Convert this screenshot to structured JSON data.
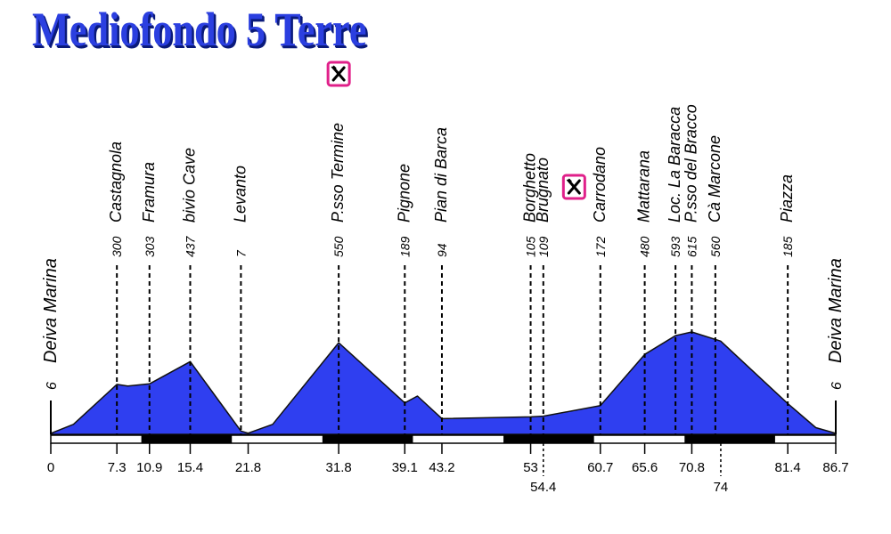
{
  "chart_data": {
    "type": "area",
    "title": "Mediofondo 5 Terre",
    "xlim": [
      0,
      86.7
    ],
    "ylim": [
      0,
      650
    ],
    "color": "#2f3ff0",
    "profile": [
      {
        "x": 0,
        "y": 6
      },
      {
        "x": 2.5,
        "y": 60
      },
      {
        "x": 7.3,
        "y": 300
      },
      {
        "x": 8.5,
        "y": 290
      },
      {
        "x": 10.9,
        "y": 303
      },
      {
        "x": 15.4,
        "y": 437
      },
      {
        "x": 21.0,
        "y": 20
      },
      {
        "x": 21.8,
        "y": 7
      },
      {
        "x": 24.5,
        "y": 60
      },
      {
        "x": 31.8,
        "y": 550
      },
      {
        "x": 39.1,
        "y": 189
      },
      {
        "x": 40.5,
        "y": 230
      },
      {
        "x": 43.2,
        "y": 94
      },
      {
        "x": 53,
        "y": 105
      },
      {
        "x": 54.4,
        "y": 109
      },
      {
        "x": 60.7,
        "y": 172
      },
      {
        "x": 65.6,
        "y": 480
      },
      {
        "x": 69.0,
        "y": 593
      },
      {
        "x": 70.8,
        "y": 615
      },
      {
        "x": 74,
        "y": 560
      },
      {
        "x": 81.4,
        "y": 185
      },
      {
        "x": 84.5,
        "y": 40
      },
      {
        "x": 86.7,
        "y": 6
      }
    ],
    "waypoints": [
      {
        "x": 7.3,
        "alt": "300",
        "name": "Castagnola"
      },
      {
        "x": 10.9,
        "alt": "303",
        "name": "Framura"
      },
      {
        "x": 15.4,
        "alt": "437",
        "name": "bivio Cave"
      },
      {
        "x": 21.0,
        "alt": "7",
        "name": "Levanto"
      },
      {
        "x": 31.8,
        "alt": "550",
        "name": "P.sso Termine"
      },
      {
        "x": 39.1,
        "alt": "189",
        "name": "Pignone"
      },
      {
        "x": 43.2,
        "alt": "94",
        "name": "Pian di Barca"
      },
      {
        "x": 53,
        "alt": "105",
        "name": "Borghetto"
      },
      {
        "x": 54.4,
        "alt": "109",
        "name": "Brugnato"
      },
      {
        "x": 60.7,
        "alt": "172",
        "name": "Carrodano"
      },
      {
        "x": 65.6,
        "alt": "480",
        "name": "Mattarana"
      },
      {
        "x": 69.0,
        "alt": "593",
        "name": "Loc. La Baracca"
      },
      {
        "x": 70.8,
        "alt": "615",
        "name": "P.sso del Bracco"
      },
      {
        "x": 73.4,
        "alt": "560",
        "name": "Cà Marcone"
      },
      {
        "x": 81.4,
        "alt": "185",
        "name": "Piazza"
      }
    ],
    "endpoints": {
      "start": {
        "alt": "6",
        "name": "Deiva Marina"
      },
      "end": {
        "alt": "6",
        "name": "Deiva Marina"
      }
    },
    "x_ticks": [
      {
        "x": 0,
        "label": "0",
        "row": 0
      },
      {
        "x": 7.3,
        "label": "7.3",
        "row": 0
      },
      {
        "x": 10.9,
        "label": "10.9",
        "row": 0
      },
      {
        "x": 15.4,
        "label": "15.4",
        "row": 0
      },
      {
        "x": 21.8,
        "label": "21.8",
        "row": 0
      },
      {
        "x": 31.8,
        "label": "31.8",
        "row": 0
      },
      {
        "x": 39.1,
        "label": "39.1",
        "row": 0
      },
      {
        "x": 43.2,
        "label": "43.2",
        "row": 0
      },
      {
        "x": 53,
        "label": "53",
        "row": 0
      },
      {
        "x": 54.4,
        "label": "54.4",
        "row": 1
      },
      {
        "x": 60.7,
        "label": "60.7",
        "row": 0
      },
      {
        "x": 65.6,
        "label": "65.6",
        "row": 0
      },
      {
        "x": 70.8,
        "label": "70.8",
        "row": 0
      },
      {
        "x": 74,
        "label": "74",
        "row": 1
      },
      {
        "x": 81.4,
        "label": "81.4",
        "row": 0
      },
      {
        "x": 86.7,
        "label": "86.7",
        "row": 0
      }
    ],
    "scale_bar_segment_km": 10,
    "refreshment_points": [
      {
        "x": 31.8,
        "icon": "fork-knife-icon"
      },
      {
        "x": 57.8,
        "icon": "fork-knife-icon"
      }
    ]
  }
}
